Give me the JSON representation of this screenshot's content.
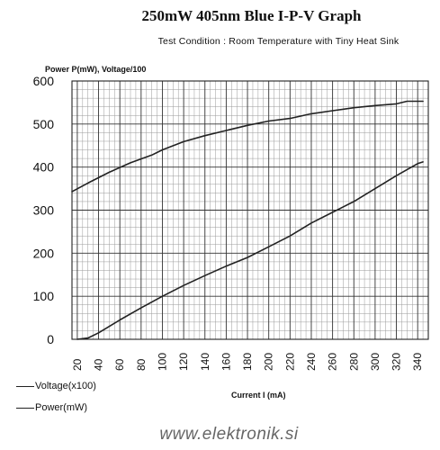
{
  "chart_data": {
    "type": "line",
    "title": "250mW 405nm Blue I-P-V Graph",
    "subtitle": "Test Condition : Room Temperature with Tiny Heat Sink",
    "ylabel": "Power P(mW), Voltage/100",
    "xlabel": "Current I (mA)",
    "xlim": [
      15,
      350
    ],
    "ylim": [
      0,
      600
    ],
    "x_ticks": [
      20,
      40,
      60,
      80,
      100,
      120,
      140,
      160,
      180,
      200,
      220,
      240,
      260,
      280,
      300,
      320,
      340
    ],
    "y_ticks": [
      0,
      100,
      200,
      300,
      400,
      500,
      600
    ],
    "grid": true,
    "series": [
      {
        "name": "Voltage(x100)",
        "color": "#222222",
        "x": [
          15,
          30,
          50,
          70,
          90,
          100,
          120,
          140,
          160,
          180,
          200,
          220,
          240,
          260,
          280,
          300,
          320,
          330,
          345
        ],
        "y": [
          343,
          363,
          388,
          410,
          428,
          440,
          459,
          473,
          485,
          497,
          507,
          513,
          524,
          531,
          538,
          543,
          547,
          553,
          553
        ]
      },
      {
        "name": "Power(mW)",
        "color": "#222222",
        "x": [
          20,
          30,
          40,
          60,
          80,
          100,
          120,
          140,
          160,
          180,
          200,
          220,
          240,
          260,
          280,
          300,
          320,
          340,
          345
        ],
        "y": [
          0,
          3,
          15,
          45,
          73,
          100,
          125,
          148,
          170,
          190,
          215,
          240,
          270,
          295,
          320,
          350,
          380,
          408,
          412
        ]
      }
    ]
  }
}
